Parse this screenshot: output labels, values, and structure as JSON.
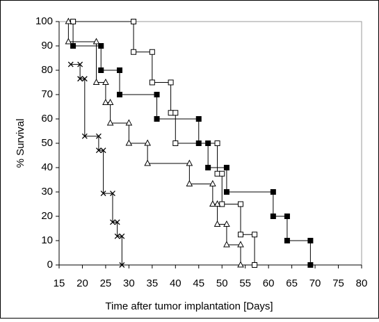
{
  "chart_data": {
    "type": "line",
    "x_label": "Time after tumor implantation [Days]",
    "y_label": "% Survival",
    "xlim": [
      15,
      80
    ],
    "xticks": [
      15,
      20,
      25,
      30,
      35,
      40,
      45,
      50,
      55,
      60,
      65,
      70,
      75,
      80
    ],
    "ylim": [
      0,
      100
    ],
    "yticks": [
      0,
      10,
      20,
      30,
      40,
      50,
      60,
      70,
      80,
      90,
      100
    ],
    "series": [
      {
        "color": "#000000",
        "marker": "filled-square",
        "x": [
          18,
          18,
          24,
          24,
          28,
          28,
          36,
          36,
          45,
          45,
          47,
          47,
          51,
          51,
          61,
          61,
          64,
          64,
          69,
          69
        ],
        "values": [
          100,
          90,
          90,
          80,
          80,
          70,
          70,
          60,
          60,
          50,
          50,
          40,
          40,
          30,
          30,
          20,
          20,
          10,
          10,
          0
        ]
      },
      {
        "color": "#000000",
        "marker": "open-square",
        "x": [
          18,
          31,
          31,
          35,
          35,
          39,
          39,
          40,
          40,
          49,
          49,
          50,
          50,
          54,
          54,
          57,
          57
        ],
        "values": [
          100,
          100,
          87.5,
          87.5,
          75,
          75,
          62.5,
          62.5,
          50,
          50,
          37.5,
          37.5,
          25,
          25,
          12.5,
          12.5,
          0
        ]
      },
      {
        "color": "#000000",
        "marker": "open-triangle",
        "x": [
          17,
          17,
          23,
          23,
          25,
          25,
          26,
          26,
          30,
          30,
          34,
          34,
          43,
          43,
          48,
          48,
          49,
          49,
          51,
          51,
          54,
          54
        ],
        "values": [
          100,
          91.7,
          91.7,
          75,
          75,
          66.7,
          66.7,
          58.3,
          58.3,
          50,
          50,
          41.7,
          41.7,
          33.3,
          33.3,
          25,
          25,
          16.7,
          16.7,
          8.3,
          8.3,
          0
        ]
      },
      {
        "color": "#000000",
        "marker": "cross",
        "x": [
          17.5,
          19.5,
          19.5,
          20.5,
          20.5,
          23.5,
          23.5,
          24.5,
          24.5,
          26.5,
          26.5,
          27.5,
          27.5,
          28.5,
          28.5
        ],
        "values": [
          82.4,
          82.4,
          76.5,
          76.5,
          52.9,
          52.9,
          47.1,
          47.1,
          29.4,
          29.4,
          17.6,
          17.6,
          11.8,
          11.8,
          0
        ]
      }
    ]
  }
}
